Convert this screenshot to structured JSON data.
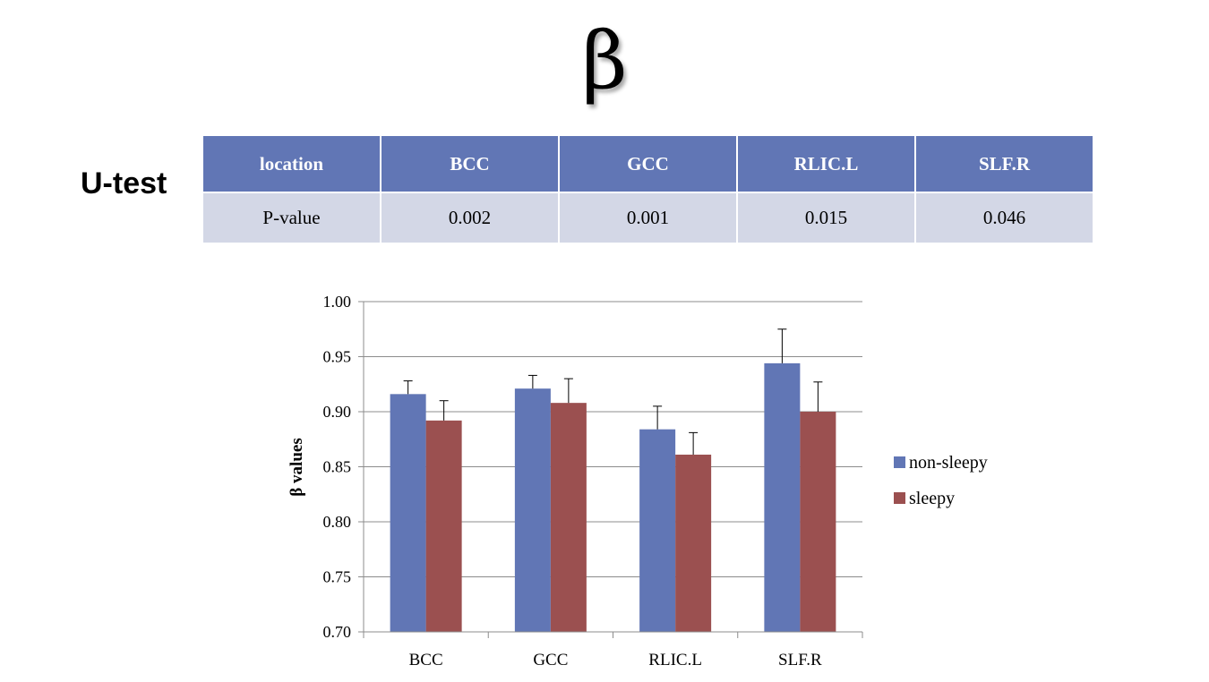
{
  "slide": {
    "title": "β",
    "test_label": "U-test"
  },
  "table": {
    "header": [
      "location",
      "BCC",
      "GCC",
      "RLIC.L",
      "SLF.R"
    ],
    "row": [
      "P-value",
      "0.002",
      "0.001",
      "0.015",
      "0.046"
    ]
  },
  "colors": {
    "non_sleepy": "#6176b5",
    "sleepy": "#9b5050",
    "header_bg": "#6176b5",
    "row_bg": "#d3d7e6"
  },
  "chart_data": {
    "type": "bar",
    "title": "",
    "xlabel": "",
    "ylabel": "β values",
    "categories": [
      "BCC",
      "GCC",
      "RLIC.L",
      "SLF.R"
    ],
    "ylim": [
      0.7,
      1.0
    ],
    "yticks": [
      "0.70",
      "0.75",
      "0.80",
      "0.85",
      "0.90",
      "0.95",
      "1.00"
    ],
    "ytick_values": [
      0.7,
      0.75,
      0.8,
      0.85,
      0.9,
      0.95,
      1.0
    ],
    "grid": true,
    "legend_position": "right",
    "series": [
      {
        "name": "non-sleepy",
        "values": [
          0.916,
          0.921,
          0.884,
          0.944
        ],
        "errors": [
          0.012,
          0.012,
          0.021,
          0.031
        ]
      },
      {
        "name": "sleepy",
        "values": [
          0.892,
          0.908,
          0.861,
          0.9
        ],
        "errors": [
          0.018,
          0.022,
          0.02,
          0.027
        ]
      }
    ]
  }
}
